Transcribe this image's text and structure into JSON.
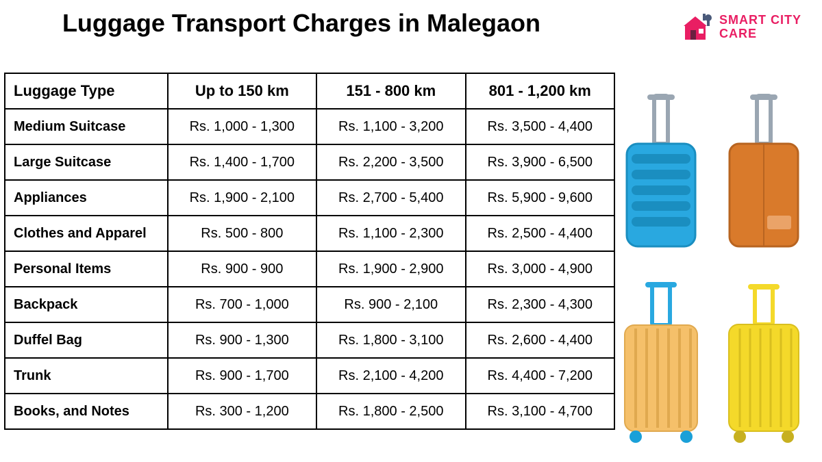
{
  "title": "Luggage Transport Charges in Malegaon",
  "logo": {
    "line1": "SMART CITY",
    "line2": "CARE",
    "color": "#e91e63",
    "house_color": "#e91e63",
    "tool_color": "#4a5a7a"
  },
  "table": {
    "columns": [
      "Luggage Type",
      "Up to 150 km",
      "151 - 800 km",
      "801 - 1,200 km"
    ],
    "rows": [
      [
        "Medium Suitcase",
        "Rs. 1,000 - 1,300",
        "Rs. 1,100 - 3,200",
        "Rs. 3,500 - 4,400"
      ],
      [
        "Large Suitcase",
        "Rs. 1,400 - 1,700",
        "Rs. 2,200 - 3,500",
        "Rs. 3,900 - 6,500"
      ],
      [
        "Appliances",
        "Rs. 1,900 - 2,100",
        "Rs. 2,700 - 5,400",
        "Rs. 5,900 - 9,600"
      ],
      [
        "Clothes and Apparel",
        "Rs. 500 - 800",
        "Rs. 1,100 - 2,300",
        "Rs. 2,500 - 4,400"
      ],
      [
        "Personal Items",
        "Rs. 900 - 900",
        "Rs. 1,900 - 2,900",
        "Rs. 3,000 - 4,900"
      ],
      [
        "Backpack",
        "Rs. 700 - 1,000",
        "Rs. 900 - 2,100",
        "Rs. 2,300 - 4,300"
      ],
      [
        "Duffel Bag",
        "Rs. 900 - 1,300",
        "Rs. 1,800 - 3,100",
        "Rs. 2,600 - 4,400"
      ],
      [
        "Trunk",
        "Rs. 900 - 1,700",
        "Rs. 2,100 - 4,200",
        "Rs. 4,400 - 7,200"
      ],
      [
        "Books, and Notes",
        "Rs. 300 - 1,200",
        "Rs. 1,800 - 2,500",
        "Rs. 3,100 - 4,700"
      ]
    ],
    "border_color": "#000000",
    "header_fontsize": 22,
    "cell_fontsize": 20
  },
  "suitcases": [
    {
      "body": "#29a8e0",
      "handle": "#9aa6b2",
      "style": "ribbed-horizontal"
    },
    {
      "body": "#d97a2b",
      "handle": "#9aa6b2",
      "style": "flat"
    },
    {
      "body": "#f5c06a",
      "handle": "#29a8e0",
      "style": "ribbed-vertical",
      "wheels": "#1aa0d8"
    },
    {
      "body": "#f4d92a",
      "handle": "#f4d92a",
      "style": "ribbed-vertical",
      "wheels": "#c7b020"
    }
  ],
  "background_color": "#ffffff"
}
